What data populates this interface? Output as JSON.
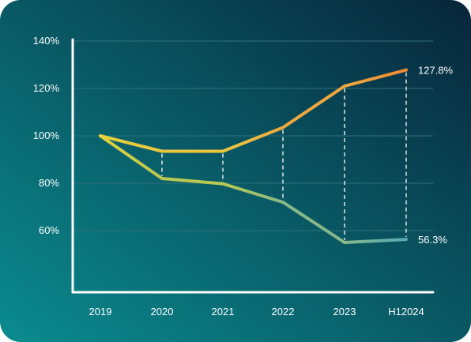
{
  "chart_data": {
    "type": "line",
    "x": [
      "2019",
      "2020",
      "2021",
      "2022",
      "2023",
      "H12024"
    ],
    "ylim": [
      40,
      140
    ],
    "yticks": [
      60,
      80,
      100,
      120,
      140
    ],
    "ytick_labels": [
      "60%",
      "80%",
      "100%",
      "120%",
      "140%"
    ],
    "grid": true,
    "series": [
      {
        "values": [
          100,
          93.5,
          93.5,
          103.5,
          121,
          127.8
        ],
        "gradient": [
          "#e6d23c",
          "#e9c640",
          "#eda93e",
          "#ef8a34"
        ]
      },
      {
        "values": [
          100,
          82,
          79.8,
          72,
          55,
          56.3
        ],
        "gradient": [
          "#e6d23c",
          "#b9c950",
          "#86b98a",
          "#56a9b5"
        ]
      }
    ],
    "end_labels": [
      "127.8%",
      "56.3%"
    ],
    "connectors": "dashed vertical lines between the two series at each year after 2019"
  },
  "colors": {
    "background_start": "#0a8c8f",
    "background_end": "#08253a",
    "axis": "#ffffff",
    "grid": "#2f6f7a",
    "text": "#ffffff"
  }
}
